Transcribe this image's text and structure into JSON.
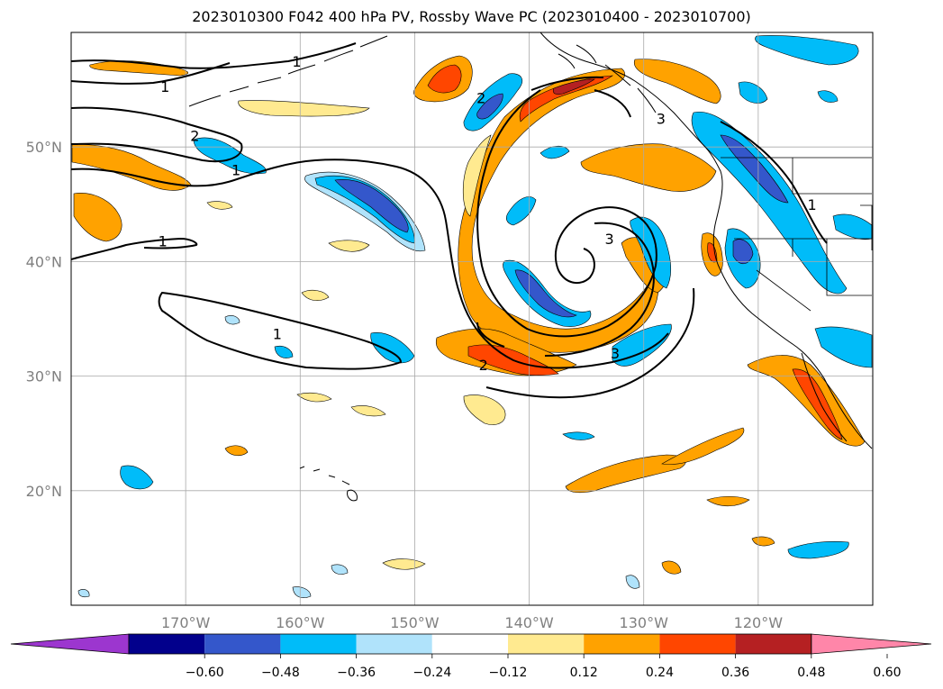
{
  "title": "2023010300 F042 400 hPa PV, Rossby Wave PC (2023010400 - 2023010700)",
  "map": {
    "lon_range": [
      -180,
      -110
    ],
    "lat_range": [
      10,
      60
    ],
    "lon_ticks": [
      {
        "lon": -170,
        "label": "170°W"
      },
      {
        "lon": -160,
        "label": "160°W"
      },
      {
        "lon": -150,
        "label": "150°W"
      },
      {
        "lon": -140,
        "label": "140°W"
      },
      {
        "lon": -130,
        "label": "130°W"
      },
      {
        "lon": -120,
        "label": "120°W"
      }
    ],
    "lat_ticks": [
      {
        "lat": 20,
        "label": "20°N"
      },
      {
        "lat": 30,
        "label": "30°N"
      },
      {
        "lat": 40,
        "label": "40°N"
      },
      {
        "lat": 50,
        "label": "50°N"
      }
    ],
    "grid": true,
    "contour_labels": [
      {
        "text": "1",
        "lon": -171.8,
        "lat": 55.3
      },
      {
        "text": "1",
        "lon": -160.3,
        "lat": 57.5
      },
      {
        "text": "2",
        "lon": -169.2,
        "lat": 51.0
      },
      {
        "text": "1",
        "lon": -165.6,
        "lat": 48.0
      },
      {
        "text": "1",
        "lon": -172.0,
        "lat": 41.8
      },
      {
        "text": "1",
        "lon": -162.0,
        "lat": 33.7
      },
      {
        "text": "2",
        "lon": -144.2,
        "lat": 54.3
      },
      {
        "text": "3",
        "lon": -128.5,
        "lat": 52.5
      },
      {
        "text": "3",
        "lon": -133.0,
        "lat": 42.0
      },
      {
        "text": "2",
        "lon": -144.0,
        "lat": 31.0
      },
      {
        "text": "3",
        "lon": -132.5,
        "lat": 32.0
      },
      {
        "text": "1",
        "lon": -115.3,
        "lat": 45.0
      }
    ]
  },
  "colorbar": {
    "colors": [
      "#9c36cf",
      "#02008c",
      "#3457cb",
      "#00bcf9",
      "#b0e3fb",
      "#ffffff",
      "#ffea90",
      "#ffa200",
      "#ff4600",
      "#b52022",
      "#ff86a9"
    ],
    "ticks": [
      "−0.60",
      "−0.48",
      "−0.36",
      "−0.24",
      "−0.12",
      "0.12",
      "0.24",
      "0.36",
      "0.48",
      "0.60"
    ],
    "extend": "both"
  },
  "colors": {
    "pos1": "#ffea90",
    "pos2": "#ffa200",
    "pos3": "#ff4600",
    "pos4": "#b52022",
    "neg1": "#b0e3fb",
    "neg2": "#00bcf9",
    "neg3": "#3457cb",
    "neg4": "#02008c",
    "grid": "#a9a9a9",
    "tick_label": "#808080"
  }
}
